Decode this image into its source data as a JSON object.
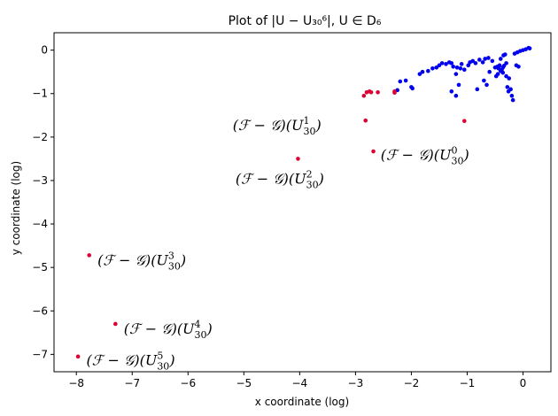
{
  "chart_data": {
    "type": "scatter",
    "title": "Plot of |U − U₃₀⁶|, U ∈ D₆",
    "xlabel": "x coordinate (log)",
    "ylabel": "y coordinate (log)",
    "xlim": [
      -8.4,
      0.5
    ],
    "ylim": [
      -7.4,
      0.4
    ],
    "xticks": [
      -8,
      -7,
      -6,
      -5,
      -4,
      -3,
      -2,
      -1,
      0
    ],
    "yticks": [
      -7,
      -6,
      -5,
      -4,
      -3,
      -2,
      -1,
      0
    ],
    "xtick_labels": [
      "−8",
      "−7",
      "−6",
      "−5",
      "−4",
      "−3",
      "−2",
      "−1",
      "0"
    ],
    "ytick_labels": [
      "−7",
      "−6",
      "−5",
      "−4",
      "−3",
      "−2",
      "−1",
      "0"
    ],
    "grid": false,
    "series": [
      {
        "color": "#0000ee",
        "points": [
          [
            -2.25,
            -0.92
          ],
          [
            -2.2,
            -0.72
          ],
          [
            -2.1,
            -0.7
          ],
          [
            -2.0,
            -0.85
          ],
          [
            -1.98,
            -0.88
          ],
          [
            -1.85,
            -0.55
          ],
          [
            -1.8,
            -0.5
          ],
          [
            -1.7,
            -0.48
          ],
          [
            -1.62,
            -0.42
          ],
          [
            -1.55,
            -0.4
          ],
          [
            -1.5,
            -0.35
          ],
          [
            -1.45,
            -0.3
          ],
          [
            -1.38,
            -0.32
          ],
          [
            -1.32,
            -0.28
          ],
          [
            -1.28,
            -0.3
          ],
          [
            -1.25,
            -0.38
          ],
          [
            -1.2,
            -0.55
          ],
          [
            -1.18,
            -0.4
          ],
          [
            -1.12,
            -0.42
          ],
          [
            -1.1,
            -0.32
          ],
          [
            -1.05,
            -0.45
          ],
          [
            -0.98,
            -0.35
          ],
          [
            -0.95,
            -0.28
          ],
          [
            -0.9,
            -0.25
          ],
          [
            -0.85,
            -0.3
          ],
          [
            -0.78,
            -0.22
          ],
          [
            -0.72,
            -0.28
          ],
          [
            -0.68,
            -0.2
          ],
          [
            -0.62,
            -0.18
          ],
          [
            -0.6,
            -0.5
          ],
          [
            -0.55,
            -0.25
          ],
          [
            -0.5,
            -0.4
          ],
          [
            -0.45,
            -0.55
          ],
          [
            -0.42,
            -0.35
          ],
          [
            -0.4,
            -0.2
          ],
          [
            -0.38,
            -0.45
          ],
          [
            -0.35,
            -0.12
          ],
          [
            -0.32,
            -0.1
          ],
          [
            -0.3,
            -0.6
          ],
          [
            -0.25,
            -0.65
          ],
          [
            -0.22,
            -0.9
          ],
          [
            -0.2,
            -1.05
          ],
          [
            -0.18,
            -1.15
          ],
          [
            -0.15,
            -0.08
          ],
          [
            -0.1,
            -0.05
          ],
          [
            -0.05,
            -0.02
          ],
          [
            0.0,
            0.0
          ],
          [
            0.05,
            0.02
          ],
          [
            0.1,
            0.05
          ],
          [
            0.12,
            0.04
          ],
          [
            -1.28,
            -0.95
          ],
          [
            -1.2,
            -1.05
          ],
          [
            -1.15,
            -0.8
          ],
          [
            -0.82,
            -0.9
          ],
          [
            -0.7,
            -0.7
          ],
          [
            -0.65,
            -0.8
          ],
          [
            -0.48,
            -0.6
          ],
          [
            -0.46,
            -0.38
          ],
          [
            -0.44,
            -0.42
          ],
          [
            -0.4,
            -0.48
          ],
          [
            -0.36,
            -0.52
          ],
          [
            -0.36,
            -0.4
          ],
          [
            -0.34,
            -0.36
          ],
          [
            -0.3,
            -0.3
          ],
          [
            -0.12,
            -0.35
          ],
          [
            -0.08,
            -0.38
          ],
          [
            -0.28,
            -0.85
          ],
          [
            -0.26,
            -0.95
          ]
        ]
      },
      {
        "color": "#dd0033",
        "points": [
          [
            -2.85,
            -1.05
          ],
          [
            -2.8,
            -0.97
          ],
          [
            -2.75,
            -0.95
          ],
          [
            -2.72,
            -0.97
          ],
          [
            -2.6,
            -0.97
          ],
          [
            -2.3,
            -0.95
          ],
          [
            -2.3,
            -0.98
          ],
          [
            -2.82,
            -1.62
          ],
          [
            -2.68,
            -2.33
          ],
          [
            -4.03,
            -2.5
          ],
          [
            -7.77,
            -4.72
          ],
          [
            -7.3,
            -6.3
          ],
          [
            -7.97,
            -7.05
          ],
          [
            -1.05,
            -1.63
          ]
        ]
      }
    ],
    "annotations": [
      {
        "text_pre": "(ℱ − 𝒢)(U",
        "sup": "1",
        "sub": "30",
        "text_post": ")",
        "x": -5.2,
        "y": -1.72
      },
      {
        "text_pre": "(ℱ − 𝒢)(U",
        "sup": "0",
        "sub": "30",
        "text_post": ")",
        "x": -2.55,
        "y": -2.4
      },
      {
        "text_pre": "(ℱ − 𝒢)(U",
        "sup": "2",
        "sub": "30",
        "text_post": ")",
        "x": -5.15,
        "y": -2.95
      },
      {
        "text_pre": "(ℱ − 𝒢)(U",
        "sup": "3",
        "sub": "30",
        "text_post": ")",
        "x": -7.62,
        "y": -4.82
      },
      {
        "text_pre": "(ℱ − 𝒢)(U",
        "sup": "4",
        "sub": "30",
        "text_post": ")",
        "x": -7.15,
        "y": -6.4
      },
      {
        "text_pre": "(ℱ − 𝒢)(U",
        "sup": "5",
        "sub": "30",
        "text_post": ")",
        "x": -7.82,
        "y": -7.12
      }
    ]
  }
}
